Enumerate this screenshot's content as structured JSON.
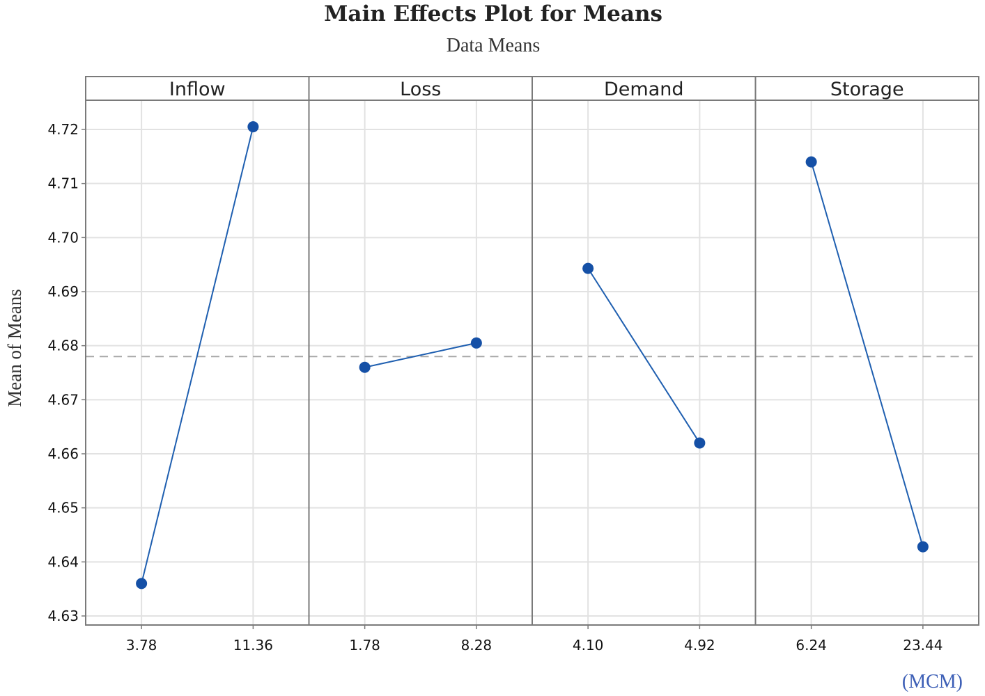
{
  "chart_data": {
    "type": "line",
    "title": "Main Effects Plot for Means",
    "subtitle": "Data Means",
    "ylabel": "Mean of Means",
    "unit_note": "(MCM)",
    "ylim": [
      4.63,
      4.72
    ],
    "yticks": [
      "4.63",
      "4.64",
      "4.65",
      "4.66",
      "4.67",
      "4.68",
      "4.69",
      "4.70",
      "4.71",
      "4.72"
    ],
    "reference_line": 4.678,
    "grid": true,
    "colors": {
      "series": "#1f5fb0",
      "marker": "#1550a6",
      "reference": "#a8a8a8",
      "grid": "#e2e2e2",
      "frame": "#7a7a7a"
    },
    "panels": [
      {
        "factor": "Inflow",
        "levels": [
          "3.78",
          "11.36"
        ],
        "values": [
          4.636,
          4.7205
        ]
      },
      {
        "factor": "Loss",
        "levels": [
          "1.78",
          "8.28"
        ],
        "values": [
          4.676,
          4.6805
        ]
      },
      {
        "factor": "Demand",
        "levels": [
          "4.10",
          "4.92"
        ],
        "values": [
          4.6943,
          4.662
        ]
      },
      {
        "factor": "Storage",
        "levels": [
          "6.24",
          "23.44"
        ],
        "values": [
          4.714,
          4.6428
        ]
      }
    ]
  }
}
